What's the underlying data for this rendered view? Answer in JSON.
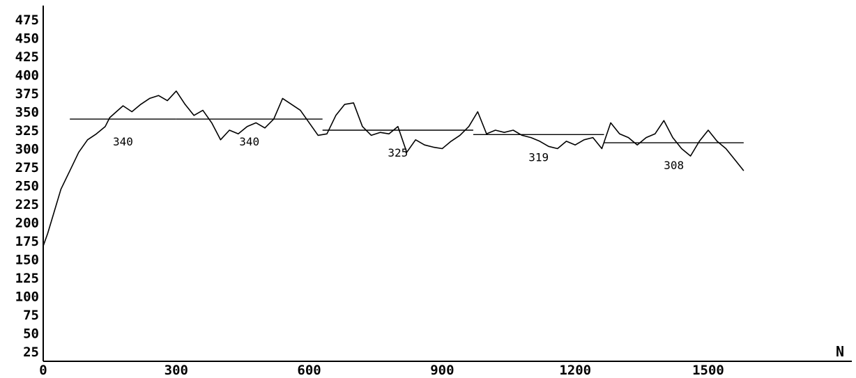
{
  "chart_data": {
    "type": "line",
    "title": "",
    "xlabel": "N",
    "ylabel": "",
    "xlim": [
      0,
      1900
    ],
    "ylim": [
      25,
      475
    ],
    "x_ticks": [
      {
        "value": 0,
        "label": "0"
      },
      {
        "value": 300,
        "label": "300"
      },
      {
        "value": 600,
        "label": "600"
      },
      {
        "value": 900,
        "label": "900"
      },
      {
        "value": 1200,
        "label": "1200"
      },
      {
        "value": 1500,
        "label": "1500"
      }
    ],
    "y_ticks": [
      {
        "value": 25,
        "label": "25"
      },
      {
        "value": 50,
        "label": "50"
      },
      {
        "value": 75,
        "label": "75"
      },
      {
        "value": 100,
        "label": "100"
      },
      {
        "value": 125,
        "label": "125"
      },
      {
        "value": 150,
        "label": "150"
      },
      {
        "value": 175,
        "label": "175"
      },
      {
        "value": 200,
        "label": "200"
      },
      {
        "value": 225,
        "label": "225"
      },
      {
        "value": 250,
        "label": "250"
      },
      {
        "value": 275,
        "label": "275"
      },
      {
        "value": 300,
        "label": "300"
      },
      {
        "value": 325,
        "label": "325"
      },
      {
        "value": 350,
        "label": "350"
      },
      {
        "value": 375,
        "label": "375"
      },
      {
        "value": 400,
        "label": "400"
      },
      {
        "value": 425,
        "label": "425"
      },
      {
        "value": 450,
        "label": "450"
      },
      {
        "value": 475,
        "label": "475"
      }
    ],
    "grid": false,
    "series": [
      {
        "x": [
          0,
          10,
          25,
          40,
          60,
          80,
          100,
          120,
          140,
          150,
          165,
          180,
          200,
          220,
          240,
          260,
          280,
          300,
          320,
          340,
          360,
          380,
          400,
          420,
          440,
          460,
          480,
          500,
          520,
          540,
          560,
          580,
          600,
          620,
          640,
          660,
          680,
          700,
          720,
          740,
          760,
          780,
          800,
          820,
          840,
          860,
          880,
          900,
          920,
          940,
          960,
          980,
          1000,
          1020,
          1040,
          1060,
          1080,
          1100,
          1120,
          1140,
          1160,
          1180,
          1200,
          1220,
          1240,
          1260,
          1280,
          1300,
          1320,
          1340,
          1360,
          1380,
          1400,
          1420,
          1440,
          1460,
          1480,
          1500,
          1520,
          1540,
          1560,
          1580
        ],
        "y": [
          168,
          185,
          215,
          245,
          270,
          295,
          312,
          320,
          330,
          342,
          350,
          358,
          350,
          360,
          368,
          372,
          365,
          378,
          360,
          345,
          352,
          335,
          312,
          325,
          320,
          330,
          335,
          328,
          340,
          368,
          360,
          352,
          335,
          318,
          320,
          345,
          360,
          362,
          330,
          318,
          322,
          320,
          330,
          295,
          312,
          305,
          302,
          300,
          310,
          318,
          330,
          350,
          320,
          325,
          322,
          325,
          318,
          315,
          310,
          303,
          300,
          310,
          305,
          312,
          315,
          300,
          335,
          320,
          315,
          305,
          315,
          320,
          338,
          315,
          300,
          290,
          310,
          325,
          310,
          300,
          285,
          270
        ]
      }
    ],
    "segments": [
      {
        "x_start": 60,
        "x_end": 300,
        "y": 340,
        "label": "340"
      },
      {
        "x_start": 300,
        "x_end": 630,
        "y": 340,
        "label": "340"
      },
      {
        "x_start": 630,
        "x_end": 970,
        "y": 325,
        "label": "325"
      },
      {
        "x_start": 970,
        "x_end": 1265,
        "y": 319,
        "label": "319"
      },
      {
        "x_start": 1265,
        "x_end": 1580,
        "y": 308,
        "label": "308"
      }
    ]
  }
}
